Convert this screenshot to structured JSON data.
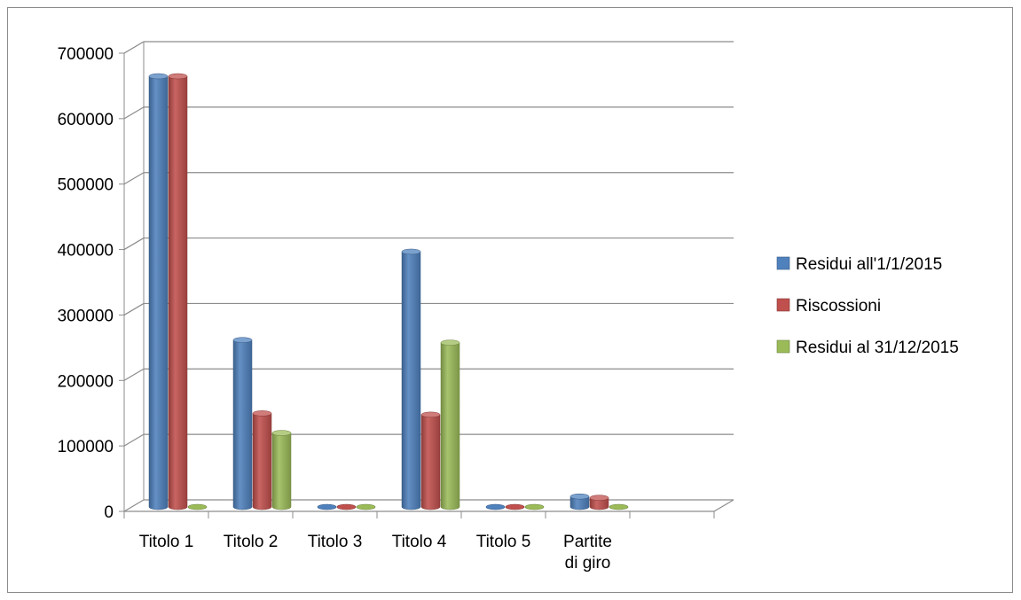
{
  "chart_data": {
    "type": "bar",
    "title": "",
    "xlabel": "",
    "ylabel": "",
    "ylim": [
      0,
      700000
    ],
    "yticks": [
      0,
      100000,
      200000,
      300000,
      400000,
      500000,
      600000,
      700000
    ],
    "ytick_labels": [
      "0",
      "100000",
      "200000",
      "300000",
      "400000",
      "500000",
      "600000",
      "700000"
    ],
    "grid": true,
    "legend_position": "right",
    "categories": [
      [
        "Titolo 1"
      ],
      [
        "Titolo 2"
      ],
      [
        "Titolo 3"
      ],
      [
        "Titolo 4"
      ],
      [
        "Titolo 5"
      ],
      [
        "Partite",
        "di giro"
      ]
    ],
    "series": [
      {
        "name": "Residui all'1/1/2015",
        "color": "#4F81BD",
        "values": [
          658000,
          255000,
          0,
          390000,
          0,
          16000
        ]
      },
      {
        "name": "Riscossioni",
        "color": "#C0504D",
        "values": [
          658000,
          143000,
          0,
          141000,
          0,
          14000
        ]
      },
      {
        "name": "Residui al 31/12/2015",
        "color": "#9BBB59",
        "values": [
          0,
          113000,
          0,
          251000,
          0,
          0
        ]
      }
    ]
  }
}
